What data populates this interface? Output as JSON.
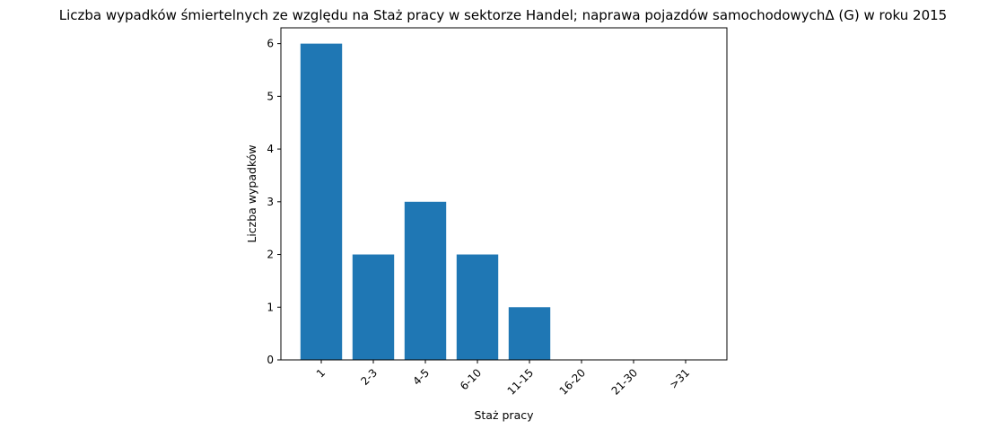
{
  "chart_data": {
    "type": "bar",
    "title": "Liczba wypadków śmiertelnych ze względu na Staż pracy w sektorze Handel; naprawa pojazdów samochodowychΔ (G) w roku 2015",
    "xlabel": "Staż pracy",
    "ylabel": "Liczba wypadków",
    "categories": [
      "1",
      "2-3",
      "4-5",
      "6-10",
      "11-15",
      "16-20",
      "21-30",
      ">31"
    ],
    "values": [
      6,
      2,
      3,
      2,
      1,
      0,
      0,
      0
    ],
    "ylim": [
      0,
      6.3
    ],
    "yticks": [
      0,
      1,
      2,
      3,
      4,
      5,
      6
    ],
    "bar_color": "#1f77b4",
    "grid": false,
    "legend": false
  }
}
